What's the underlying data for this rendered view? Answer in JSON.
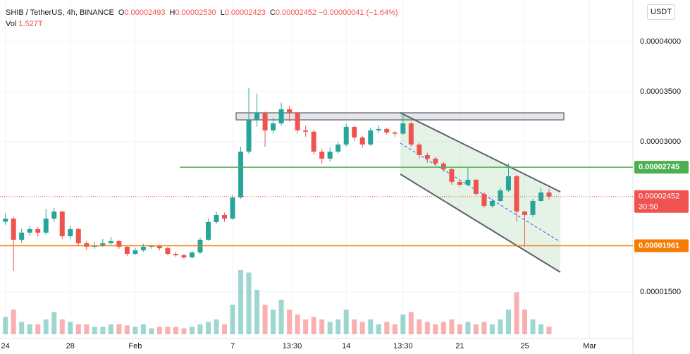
{
  "header": {
    "symbol": "SHIB / TetherUS, 4h, BINANCE",
    "items": [
      {
        "key": "O",
        "value": "0.00002493"
      },
      {
        "key": "H",
        "value": "0.00002530"
      },
      {
        "key": "L",
        "value": "0.00002423"
      },
      {
        "key": "C",
        "value": "0.00002452"
      }
    ],
    "change": "−0.00000041 (−1.64%)",
    "volume_key": "Vol",
    "volume": "1.527T",
    "currency": "USDT"
  },
  "chart_data": {
    "type": "candlestick",
    "grid": true,
    "up_color": "#26a69a",
    "down_color": "#ef5350",
    "x": [
      0,
      3,
      6,
      9,
      12,
      15,
      18,
      21,
      24,
      27,
      30,
      33,
      36,
      39,
      42,
      45,
      48,
      51,
      54,
      57,
      60,
      63,
      66,
      69,
      72,
      75,
      78,
      81,
      84,
      87,
      90,
      93,
      96,
      99,
      102,
      105,
      108,
      111,
      114,
      117,
      120,
      123,
      126,
      129,
      132,
      135,
      138,
      141,
      144,
      147,
      150,
      153,
      156,
      159,
      162,
      165,
      168,
      171,
      174,
      177,
      180,
      183,
      186,
      189,
      192,
      195,
      198,
      201
    ],
    "open": [
      2.2e-05,
      2.232e-05,
      2.021e-05,
      2.092e-05,
      2.127e-05,
      2.092e-05,
      2.232e-05,
      2.303e-05,
      2.056e-05,
      2.127e-05,
      1.986e-05,
      1.951e-05,
      1.965e-05,
      1.986e-05,
      2.007e-05,
      1.951e-05,
      1.88e-05,
      1.916e-05,
      1.951e-05,
      1.958e-05,
      1.937e-05,
      1.88e-05,
      1.866e-05,
      1.845e-05,
      1.894e-05,
      2.021e-05,
      2.197e-05,
      2.268e-05,
      2.232e-05,
      2.444e-05,
      2.901e-05,
      3.218e-05,
      3.289e-05,
      3.113e-05,
      3.183e-05,
      3.324e-05,
      3.289e-05,
      3.113e-05,
      3.1e-05,
      2.901e-05,
      2.831e-05,
      2.901e-05,
      2.972e-05,
      3.148e-05,
      3.042e-05,
      2.972e-05,
      3.113e-05,
      3.127e-05,
      3.092e-05,
      3.08e-05,
      3.183e-05,
      2.972e-05,
      2.866e-05,
      2.831e-05,
      2.782e-05,
      2.725e-05,
      2.599e-05,
      2.57e-05,
      2.62e-05,
      2.479e-05,
      2.359e-05,
      2.408e-05,
      2.514e-05,
      2.655e-05,
      2.303e-05,
      2.268e-05,
      2.408e-05,
      2.493e-05
    ],
    "high": [
      2.28e-05,
      2.25e-05,
      2.13e-05,
      2.16e-05,
      2.15e-05,
      2.33e-05,
      2.34e-05,
      2.31e-05,
      2.16e-05,
      2.14e-05,
      2.01e-05,
      2e-05,
      2.03e-05,
      2.05e-05,
      2.02e-05,
      1.96e-05,
      1.94e-05,
      1.98e-05,
      1.97e-05,
      1.97e-05,
      1.95e-05,
      1.9e-05,
      1.88e-05,
      1.91e-05,
      2.04e-05,
      2.23e-05,
      2.3e-05,
      2.29e-05,
      2.47e-05,
      2.95e-05,
      3.535e-05,
      3.48e-05,
      3.3e-05,
      3.24e-05,
      3.39e-05,
      3.36e-05,
      3.3e-05,
      3.16e-05,
      3.12e-05,
      2.93e-05,
      2.94e-05,
      3e-05,
      3.18e-05,
      3.16e-05,
      3.06e-05,
      3.14e-05,
      3.16e-05,
      3.14e-05,
      3.11e-05,
      3.28e-05,
      3.2e-05,
      2.99e-05,
      2.89e-05,
      2.85e-05,
      2.8e-05,
      2.74e-05,
      2.62e-05,
      2.75e-05,
      2.63e-05,
      2.5e-05,
      2.43e-05,
      2.54e-05,
      2.78e-05,
      2.67e-05,
      2.31e-05,
      2.43e-05,
      2.54e-05,
      2.53e-05
    ],
    "low": [
      2.17e-05,
      1.71e-05,
      1.99e-05,
      2.06e-05,
      2.05e-05,
      2.07e-05,
      2.2e-05,
      2.03e-05,
      2.03e-05,
      1.96e-05,
      1.92e-05,
      1.93e-05,
      1.95e-05,
      1.97e-05,
      1.93e-05,
      1.86e-05,
      1.87e-05,
      1.9e-05,
      1.93e-05,
      1.915e-05,
      1.865e-05,
      1.85e-05,
      1.83e-05,
      1.835e-05,
      1.88e-05,
      2.01e-05,
      2.18e-05,
      2.2e-05,
      2.22e-05,
      2.43e-05,
      2.88e-05,
      3.15e-05,
      2.95e-05,
      3.08e-05,
      3.16e-05,
      3.2e-05,
      3.08e-05,
      3.05e-05,
      2.87e-05,
      2.78e-05,
      2.8e-05,
      2.88e-05,
      2.95e-05,
      3.01e-05,
      2.94e-05,
      2.96e-05,
      3.09e-05,
      3.07e-05,
      3.05e-05,
      3.07e-05,
      2.95e-05,
      2.83e-05,
      2.79e-05,
      2.76e-05,
      2.7e-05,
      2.57e-05,
      2.55e-05,
      2.56e-05,
      2.46e-05,
      2.34e-05,
      2.34e-05,
      2.4e-05,
      2.5e-05,
      2.2e-05,
      1.951e-05,
      2.25e-05,
      2.4e-05,
      2.423e-05
    ],
    "close": [
      2.232e-05,
      2.021e-05,
      2.092e-05,
      2.127e-05,
      2.092e-05,
      2.232e-05,
      2.303e-05,
      2.056e-05,
      2.127e-05,
      1.986e-05,
      1.951e-05,
      1.965e-05,
      1.986e-05,
      2.007e-05,
      1.951e-05,
      1.88e-05,
      1.916e-05,
      1.951e-05,
      1.958e-05,
      1.937e-05,
      1.88e-05,
      1.866e-05,
      1.845e-05,
      1.894e-05,
      2.021e-05,
      2.197e-05,
      2.268e-05,
      2.232e-05,
      2.444e-05,
      2.901e-05,
      3.218e-05,
      3.289e-05,
      3.113e-05,
      3.183e-05,
      3.324e-05,
      3.289e-05,
      3.113e-05,
      3.1e-05,
      2.901e-05,
      2.831e-05,
      2.901e-05,
      2.972e-05,
      3.148e-05,
      3.042e-05,
      2.972e-05,
      3.113e-05,
      3.127e-05,
      3.092e-05,
      3.08e-05,
      3.183e-05,
      2.972e-05,
      2.866e-05,
      2.831e-05,
      2.782e-05,
      2.725e-05,
      2.599e-05,
      2.57e-05,
      2.62e-05,
      2.479e-05,
      2.359e-05,
      2.408e-05,
      2.514e-05,
      2.655e-05,
      2.303e-05,
      2.268e-05,
      2.408e-05,
      2.493e-05,
      2.452e-05
    ],
    "volume": [
      3.5,
      5,
      2.5,
      2,
      2,
      3,
      4.5,
      3,
      2.5,
      2,
      2,
      1.5,
      1.5,
      2,
      2,
      1.8,
      1.5,
      2,
      1.2,
      1.5,
      1.5,
      1.5,
      1.2,
      1.5,
      2,
      2.5,
      3,
      2,
      6,
      13,
      12.5,
      9,
      6,
      5,
      7,
      5,
      4,
      3,
      3.5,
      3,
      2.5,
      3,
      5,
      3,
      2.5,
      3,
      2,
      2.5,
      2,
      4,
      4.5,
      3,
      2.5,
      2,
      2.5,
      3,
      2,
      2.5,
      2,
      2.5,
      2,
      3,
      5,
      8.5,
      5,
      3,
      2,
      1.527
    ],
    "xlim": [
      -2,
      232
    ],
    "xticks": [
      {
        "value": 0,
        "label": "24"
      },
      {
        "value": 24,
        "label": "28"
      },
      {
        "value": 48,
        "label": "Feb"
      },
      {
        "value": 84,
        "label": "7"
      },
      {
        "value": 106,
        "label": "13:30"
      },
      {
        "value": 126,
        "label": "14"
      },
      {
        "value": 147,
        "label": "13:30"
      },
      {
        "value": 168,
        "label": "21"
      },
      {
        "value": 192,
        "label": "25"
      },
      {
        "value": 216,
        "label": "Mar"
      }
    ],
    "ylim": [
      1.035e-05,
      4.415e-05
    ],
    "yticks": [
      {
        "value": 4e-05,
        "label": "0.00004000"
      },
      {
        "value": 3.5e-05,
        "label": "0.00003500"
      },
      {
        "value": 3e-05,
        "label": "0.00003000"
      },
      {
        "value": 1.5e-05,
        "label": "0.00001500"
      }
    ],
    "price_lines": [
      {
        "value": 2.745e-05,
        "color": "#4caf50"
      },
      {
        "value": 1.961e-05,
        "color": "#f57c00"
      }
    ],
    "last_price": {
      "value": 2.452e-05,
      "countdown": "30:50",
      "color": "#ef5350"
    }
  }
}
